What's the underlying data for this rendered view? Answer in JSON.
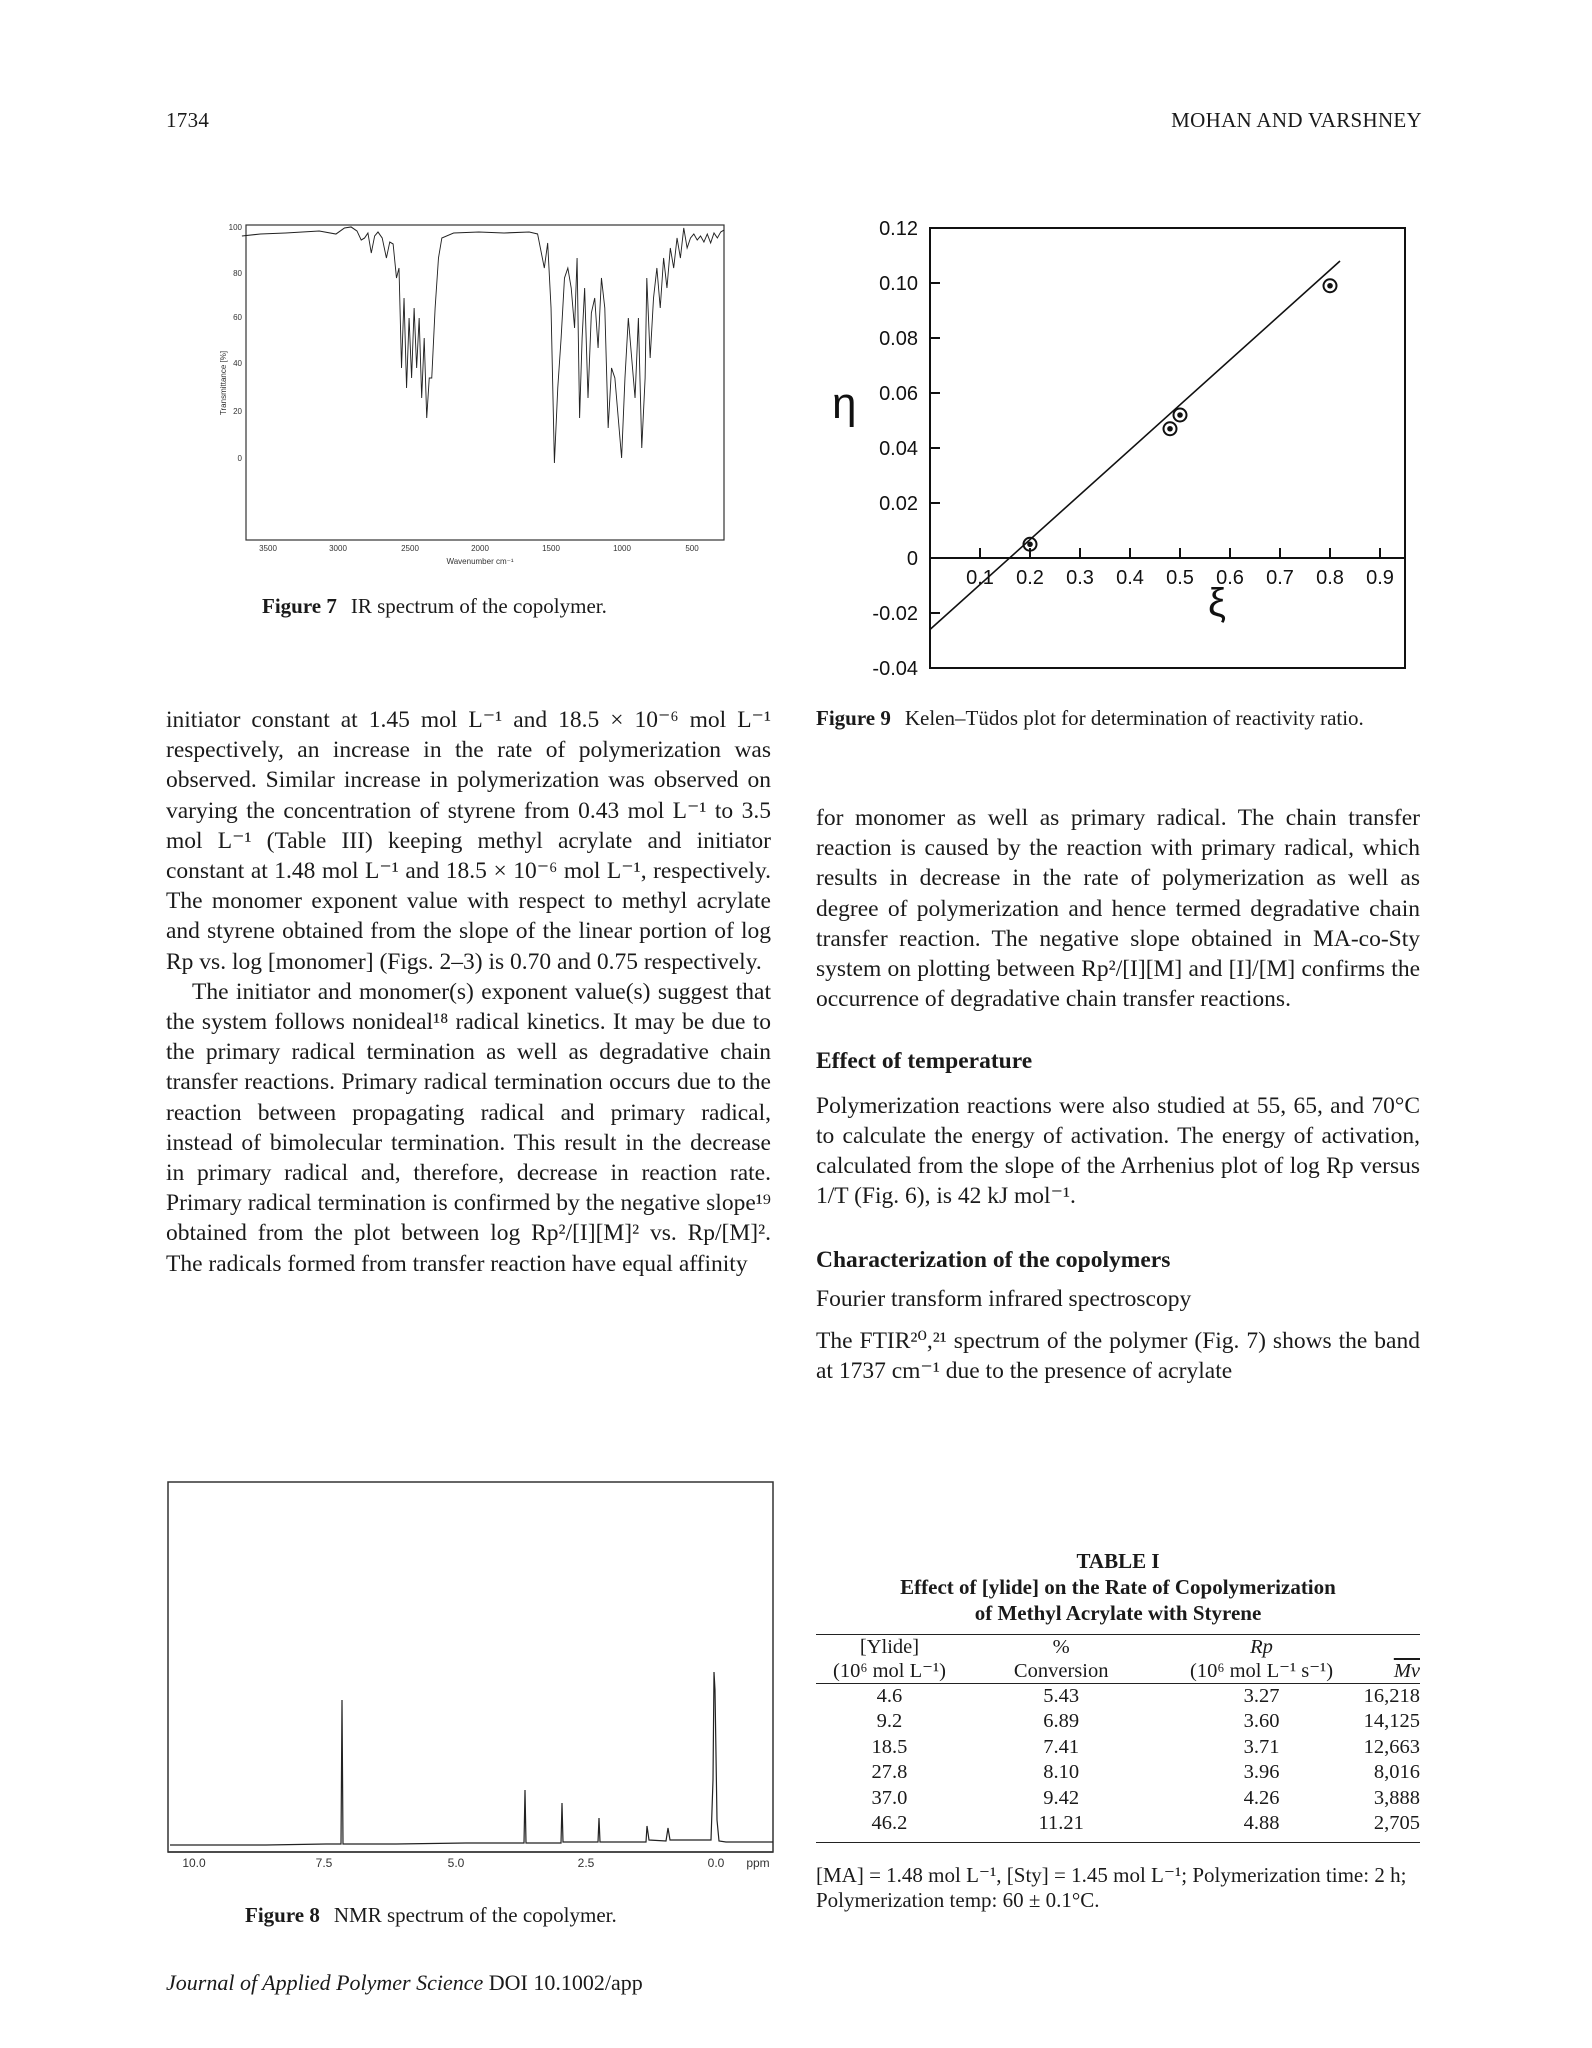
{
  "header": {
    "page_number": "1734",
    "running_title": "MOHAN AND VARSHNEY"
  },
  "figure7": {
    "caption_label": "Figure 7",
    "caption_text": "IR spectrum of the copolymer.",
    "y_axis_label": "Transmittance [%]",
    "x_axis_label": "Wavenumber cm⁻¹",
    "y_ticks": [
      "100",
      "80",
      "60",
      "40",
      "20",
      "0"
    ],
    "x_ticks": [
      "3500",
      "3000",
      "2500",
      "2000",
      "1500",
      "1000",
      "500"
    ]
  },
  "figure8": {
    "caption_label": "Figure 8",
    "caption_text": "NMR spectrum of the copolymer.",
    "x_ticks": [
      "10.0",
      "7.5",
      "5.0",
      "2.5",
      "0.0"
    ],
    "x_unit": "ppm"
  },
  "figure9": {
    "caption_label": "Figure 9",
    "caption_text": "Kelen–Tüdos plot for determination of reactivity ratio.",
    "y_axis_label": "η",
    "x_axis_label": "ξ",
    "y_ticks": [
      "0.12",
      "0.10",
      "0.08",
      "0.06",
      "0.04",
      "0.02",
      "0",
      "-0.02",
      "-0.04"
    ],
    "x_ticks": [
      "0.1",
      "0.2",
      "0.3",
      "0.4",
      "0.5",
      "0.6",
      "0.7",
      "0.8",
      "0.9"
    ]
  },
  "chart_data": [
    {
      "type": "scatter",
      "title": "",
      "xlabel": "ξ",
      "ylabel": "η",
      "xlim": [
        0,
        0.95
      ],
      "ylim": [
        -0.04,
        0.12
      ],
      "x": [
        0.2,
        0.48,
        0.5,
        0.8
      ],
      "y": [
        0.005,
        0.047,
        0.052,
        0.099
      ],
      "fit_line": {
        "x": [
          0,
          0.82
        ],
        "y": [
          -0.026,
          0.108
        ]
      },
      "grid": false
    }
  ],
  "left_column": {
    "paragraph1": "initiator constant at 1.45 mol L⁻¹ and 18.5 × 10⁻⁶ mol L⁻¹ respectively, an increase in the rate of polymerization was observed. Similar increase in polymerization was observed on varying the concentration of styrene from 0.43 mol L⁻¹ to 3.5 mol L⁻¹ (Table III) keeping methyl acrylate and initiator constant at 1.48 mol L⁻¹ and 18.5 × 10⁻⁶ mol L⁻¹, respectively. The monomer exponent value with respect to methyl acrylate and styrene obtained from the slope of the linear portion of log Rp vs. log [monomer] (Figs. 2–3) is 0.70 and 0.75 respectively.",
    "paragraph2": "The initiator and monomer(s) exponent value(s) suggest that the system follows nonideal¹⁸ radical kinetics. It may be due to the primary radical termination as well as degradative chain transfer reactions. Primary radical termination occurs due to the reaction between propagating radical and primary radical, instead of bimolecular termination. This result in the decrease in primary radical and, therefore, decrease in reaction rate. Primary radical termination is confirmed by the negative slope¹⁹ obtained from the plot between log Rp²/[I][M]² vs. Rp/[M]². The radicals formed from transfer reaction have equal affinity"
  },
  "right_column": {
    "paragraph1": "for monomer as well as primary radical. The chain transfer reaction is caused by the reaction with primary radical, which results in decrease in the rate of polymerization as well as degree of polymerization and hence termed degradative chain transfer reaction. The negative slope obtained in MA-co-Sty system on plotting between Rp²/[I][M] and [I]/[M] confirms the occurrence of degradative chain transfer reactions.",
    "section1_title": "Effect of temperature",
    "section1_text": "Polymerization reactions were also studied at 55, 65, and 70°C to calculate the energy of activation. The energy of activation, calculated from the slope of the Arrhenius plot of log Rp versus 1/T (Fig. 6), is 42 kJ mol⁻¹.",
    "section2_title": "Characterization of the copolymers",
    "subsection2_title": "Fourier transform infrared spectroscopy",
    "section2_text": "The FTIR²⁰,²¹ spectrum of the polymer (Fig. 7) shows the band at 1737 cm⁻¹ due to the presence of acrylate"
  },
  "table1": {
    "label": "TABLE I",
    "title_line1": "Effect of [ylide] on the Rate of Copolymerization",
    "title_line2": "of Methyl Acrylate with Styrene",
    "headers": [
      {
        "top": "[Ylide]",
        "bottom": "(10⁶ mol L⁻¹)"
      },
      {
        "top": "%",
        "bottom": "Conversion"
      },
      {
        "top": "Rp",
        "bottom": "(10⁶ mol L⁻¹ s⁻¹)"
      },
      {
        "top": "",
        "bottom": "Mv"
      }
    ],
    "rows": [
      [
        "4.6",
        "5.43",
        "3.27",
        "16,218"
      ],
      [
        "9.2",
        "6.89",
        "3.60",
        "14,125"
      ],
      [
        "18.5",
        "7.41",
        "3.71",
        "12,663"
      ],
      [
        "27.8",
        "8.10",
        "3.96",
        "8,016"
      ],
      [
        "37.0",
        "9.42",
        "4.26",
        "3,888"
      ],
      [
        "46.2",
        "11.21",
        "4.88",
        "2,705"
      ]
    ],
    "footnote": "[MA] = 1.48 mol L⁻¹, [Sty] = 1.45 mol L⁻¹; Polymerization time: 2 h; Polymerization temp: 60 ± 0.1°C."
  },
  "footer": {
    "journal": "Journal of Applied Polymer Science",
    "doi": "DOI 10.1002/app"
  }
}
